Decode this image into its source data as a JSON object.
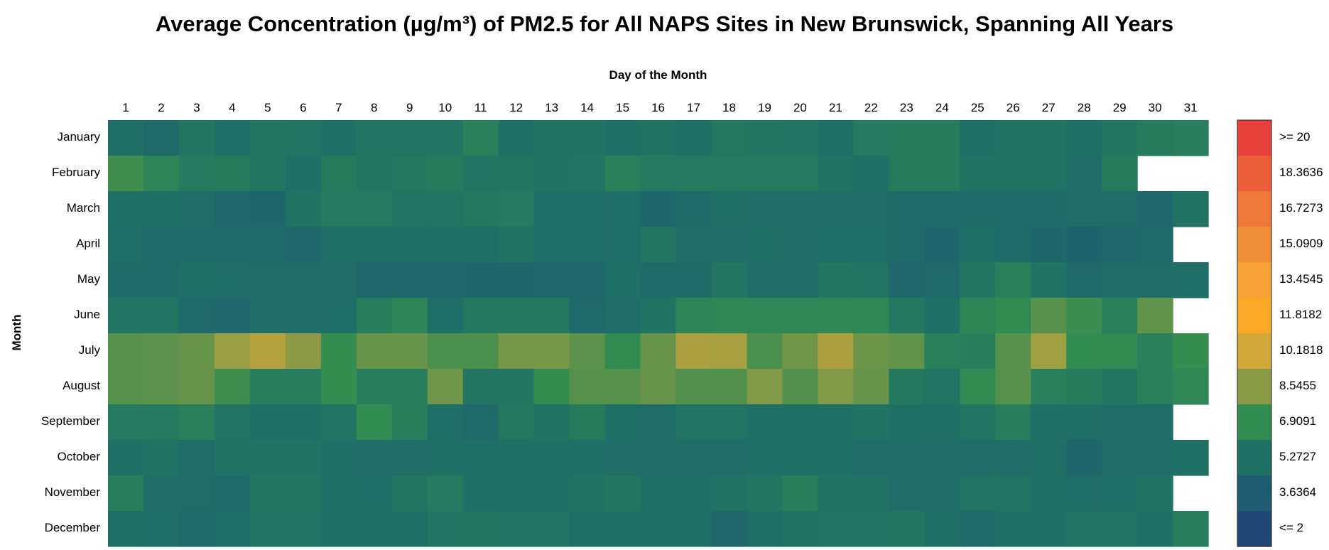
{
  "chart_data": {
    "type": "heatmap",
    "title": "Average Concentration (µg/m³) of PM2.5 for All NAPS Sites in New Brunswick, Spanning All Years",
    "xlabel": "Day of the Month",
    "ylabel": "Month",
    "x": [
      1,
      2,
      3,
      4,
      5,
      6,
      7,
      8,
      9,
      10,
      11,
      12,
      13,
      14,
      15,
      16,
      17,
      18,
      19,
      20,
      21,
      22,
      23,
      24,
      25,
      26,
      27,
      28,
      29,
      30,
      31
    ],
    "y": [
      "January",
      "February",
      "March",
      "April",
      "May",
      "June",
      "July",
      "August",
      "September",
      "October",
      "November",
      "December"
    ],
    "values": [
      [
        5.2,
        4.8,
        5.6,
        5.1,
        5.6,
        5.5,
        5.3,
        5.5,
        5.5,
        5.5,
        6.2,
        5.3,
        5.4,
        5.4,
        5.2,
        5.4,
        5.2,
        5.7,
        5.6,
        5.5,
        5.2,
        5.8,
        5.9,
        5.9,
        5.3,
        5.4,
        5.4,
        5.3,
        5.6,
        5.9,
        6.0
      ],
      [
        7.2,
        6.4,
        5.8,
        5.9,
        5.6,
        5.2,
        5.9,
        5.6,
        5.7,
        5.9,
        5.5,
        5.6,
        5.4,
        5.5,
        6.2,
        5.8,
        5.8,
        5.8,
        5.8,
        5.8,
        5.4,
        5.3,
        5.9,
        5.9,
        5.4,
        5.4,
        5.4,
        5.0,
        5.9,
        null,
        null
      ],
      [
        5.3,
        5.3,
        5.0,
        4.6,
        4.5,
        5.4,
        5.8,
        5.8,
        5.5,
        5.5,
        5.7,
        5.8,
        5.1,
        5.1,
        5.1,
        4.5,
        4.9,
        5.2,
        5.0,
        5.0,
        5.0,
        5.0,
        4.9,
        4.9,
        4.9,
        4.9,
        4.9,
        5.0,
        5.0,
        4.6,
        5.4
      ],
      [
        5.1,
        4.7,
        4.9,
        4.9,
        4.7,
        4.6,
        5.2,
        5.2,
        5.3,
        5.3,
        5.3,
        5.4,
        5.1,
        5.1,
        5.1,
        5.6,
        5.0,
        5.0,
        5.2,
        5.0,
        5.1,
        5.1,
        4.9,
        4.4,
        5.3,
        4.9,
        4.5,
        4.2,
        4.6,
        4.7,
        null
      ],
      [
        4.9,
        4.9,
        5.3,
        5.1,
        5.0,
        5.0,
        5.0,
        4.6,
        4.6,
        4.6,
        4.5,
        4.5,
        4.6,
        4.6,
        5.3,
        4.9,
        4.9,
        5.6,
        5.0,
        5.0,
        5.6,
        5.5,
        4.6,
        4.7,
        5.6,
        6.2,
        5.4,
        4.7,
        5.0,
        5.0,
        5.1
      ],
      [
        5.5,
        5.5,
        4.7,
        4.6,
        5.0,
        5.0,
        5.1,
        6.0,
        6.4,
        5.1,
        5.7,
        5.7,
        5.7,
        4.7,
        5.0,
        5.4,
        6.4,
        6.6,
        6.6,
        6.6,
        6.6,
        6.6,
        5.7,
        5.3,
        6.5,
        6.8,
        7.6,
        7.1,
        6.2,
        7.8,
        null
      ],
      [
        7.6,
        7.7,
        7.9,
        8.9,
        9.5,
        8.6,
        7.0,
        7.9,
        7.9,
        7.4,
        7.4,
        8.2,
        8.2,
        7.7,
        6.8,
        7.9,
        9.3,
        9.2,
        7.4,
        8.1,
        9.3,
        8.0,
        7.8,
        6.2,
        6.0,
        7.6,
        9.0,
        6.9,
        6.8,
        6.2,
        7.0
      ],
      [
        7.6,
        7.7,
        7.9,
        7.2,
        6.0,
        6.0,
        7.0,
        6.0,
        6.0,
        8.1,
        5.6,
        5.6,
        7.0,
        7.6,
        7.6,
        7.9,
        7.5,
        7.5,
        8.4,
        7.5,
        8.4,
        7.9,
        5.7,
        5.5,
        6.8,
        7.6,
        6.2,
        5.9,
        5.6,
        6.2,
        6.6
      ],
      [
        5.8,
        5.8,
        6.2,
        5.5,
        5.2,
        5.2,
        5.5,
        6.9,
        6.1,
        5.1,
        4.8,
        5.7,
        5.4,
        5.9,
        5.3,
        5.0,
        5.5,
        5.5,
        5.2,
        5.2,
        5.2,
        5.4,
        5.3,
        5.2,
        5.5,
        6.0,
        5.2,
        5.2,
        5.0,
        5.0,
        null
      ],
      [
        5.2,
        5.4,
        5.0,
        5.4,
        5.4,
        5.4,
        5.3,
        5.0,
        5.0,
        5.2,
        5.2,
        5.2,
        5.2,
        5.2,
        5.0,
        5.0,
        5.0,
        5.0,
        5.2,
        5.2,
        5.3,
        5.0,
        5.0,
        5.0,
        5.0,
        5.0,
        5.2,
        4.5,
        5.0,
        5.0,
        5.3
      ],
      [
        6.0,
        5.0,
        5.0,
        4.8,
        5.6,
        5.6,
        5.3,
        5.1,
        5.6,
        5.8,
        5.3,
        5.3,
        5.3,
        5.4,
        5.6,
        5.3,
        5.3,
        5.4,
        5.6,
        6.1,
        5.4,
        5.4,
        5.0,
        5.0,
        5.5,
        5.5,
        5.2,
        5.1,
        5.1,
        5.4,
        null
      ],
      [
        5.2,
        5.1,
        4.8,
        5.1,
        5.5,
        5.5,
        5.3,
        5.2,
        5.2,
        5.5,
        5.6,
        5.5,
        5.5,
        5.3,
        5.3,
        5.3,
        5.3,
        4.6,
        5.2,
        5.4,
        5.5,
        5.5,
        5.6,
        5.3,
        4.9,
        5.3,
        5.3,
        5.5,
        5.5,
        5.3,
        6.0
      ]
    ],
    "colorscale": {
      "labels": [
        ">= 20",
        "18.3636",
        "16.7273",
        "15.0909",
        "13.4545",
        "11.8182",
        "10.1818",
        "8.5455",
        "6.9091",
        "5.2727",
        "3.6364",
        "<= 2"
      ],
      "colors": [
        "#e8403a",
        "#ec5d3a",
        "#ee773a",
        "#f18e3a",
        "#f7a236",
        "#fba929",
        "#d3a83a",
        "#8a9a46",
        "#318c51",
        "#207165",
        "#1f5c73",
        "#1f4877"
      ],
      "min": 2,
      "max": 20
    }
  }
}
